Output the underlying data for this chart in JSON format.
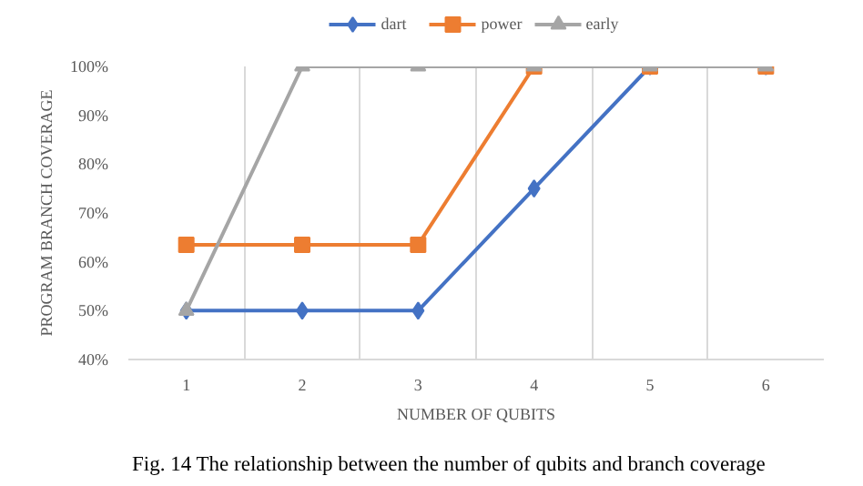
{
  "chart_data": {
    "type": "line",
    "xlabel": "NUMBER OF QUBITS",
    "ylabel": "PROGRAM BRANCH COVERAGE",
    "categories": [
      "1",
      "2",
      "3",
      "4",
      "5",
      "6"
    ],
    "series": [
      {
        "name": "dart",
        "color": "#4472c4",
        "marker": "diamond",
        "values": [
          50,
          50,
          50,
          75,
          100,
          100
        ]
      },
      {
        "name": "power",
        "color": "#ed7d31",
        "marker": "square",
        "values": [
          63.5,
          63.5,
          63.5,
          100,
          100,
          100
        ]
      },
      {
        "name": "early",
        "color": "#a5a5a5",
        "marker": "triangle",
        "values": [
          50,
          100,
          100,
          100,
          100,
          100
        ]
      }
    ],
    "ylim": [
      40,
      100
    ],
    "yticks": [
      {
        "value": 40,
        "label": "40%"
      },
      {
        "value": 50,
        "label": "50%"
      },
      {
        "value": 60,
        "label": "60%"
      },
      {
        "value": 70,
        "label": "70%"
      },
      {
        "value": 80,
        "label": "80%"
      },
      {
        "value": 90,
        "label": "90%"
      },
      {
        "value": 100,
        "label": "100%"
      }
    ],
    "grid": "x",
    "legend": "top",
    "line_style": "solid",
    "annotations": [
      "Fig. 14 The relationship between the number of qubits and branch coverage"
    ]
  }
}
